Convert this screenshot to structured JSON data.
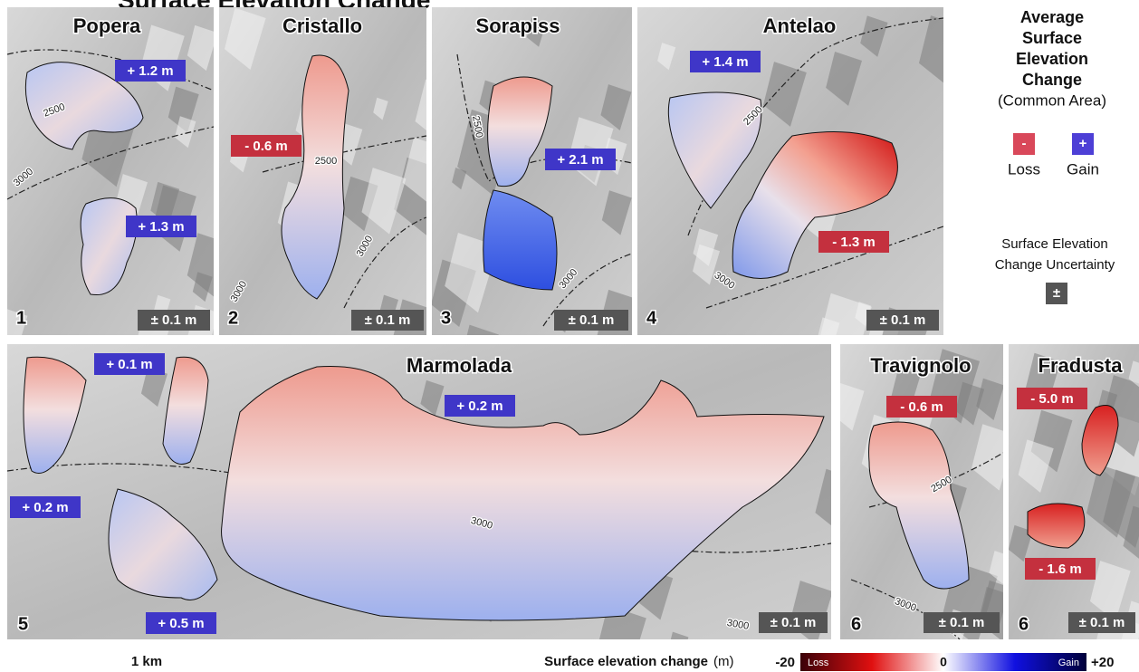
{
  "title": "Surface Elevation Change",
  "panels": [
    {
      "name": "Popera",
      "number": "1",
      "uncertainty": "± 0.1 m",
      "changes": [
        {
          "text": "+ 1.2 m",
          "color": "#3f36c8"
        },
        {
          "text": "+ 1.3 m",
          "color": "#3f36c8"
        }
      ],
      "contours": [
        "2500",
        "3000"
      ]
    },
    {
      "name": "Cristallo",
      "number": "2",
      "uncertainty": "± 0.1 m",
      "changes": [
        {
          "text": "- 0.6 m",
          "color": "#c4303e"
        }
      ],
      "contours": [
        "2500",
        "3000",
        "3000"
      ]
    },
    {
      "name": "Sorapiss",
      "number": "3",
      "uncertainty": "± 0.1 m",
      "changes": [
        {
          "text": "+ 2.1 m",
          "color": "#3f36c8"
        }
      ],
      "contours": [
        "2500",
        "3000"
      ]
    },
    {
      "name": "Antelao",
      "number": "4",
      "uncertainty": "± 0.1 m",
      "changes": [
        {
          "text": "+ 1.4 m",
          "color": "#3f36c8"
        },
        {
          "text": "- 1.3 m",
          "color": "#c4303e"
        }
      ],
      "contours": [
        "2500",
        "3000"
      ]
    },
    {
      "name": "Marmolada",
      "number": "5",
      "uncertainty": "± 0.1 m",
      "changes": [
        {
          "text": "+ 0.1 m",
          "color": "#3f36c8"
        },
        {
          "text": "+ 0.2 m",
          "color": "#3f36c8"
        },
        {
          "text": "+ 0.2 m",
          "color": "#3f36c8"
        },
        {
          "text": "+ 0.5 m",
          "color": "#3f36c8"
        }
      ],
      "contours": [
        "3000",
        "3000"
      ]
    },
    {
      "name": "Travignolo",
      "number": "6",
      "uncertainty": "± 0.1 m",
      "changes": [
        {
          "text": "- 0.6 m",
          "color": "#c4303e"
        }
      ],
      "contours": [
        "2500",
        "3000"
      ]
    },
    {
      "name": "Fradusta",
      "number": "6",
      "uncertainty": "± 0.1 m",
      "changes": [
        {
          "text": "- 5.0 m",
          "color": "#c4303e"
        },
        {
          "text": "- 1.6 m",
          "color": "#c4303e"
        }
      ],
      "contours": []
    }
  ],
  "legend": {
    "title_lines": [
      "Average",
      "Surface",
      "Elevation",
      "Change"
    ],
    "subtitle": "(Common Area)",
    "loss_symbol": "-",
    "loss_color": "#d9485a",
    "loss": "Loss",
    "gain_symbol": "+",
    "gain_color": "#4d3fd6",
    "gain": "Gain",
    "uncertainty_lines": [
      "Surface Elevation",
      "Change Uncertainty"
    ],
    "uncertainty_symbol": "±",
    "uncertainty_color": "#555555"
  },
  "scale_bar": "1 km",
  "colorbar": {
    "label": "Surface elevation change",
    "unit": "(m)",
    "min": "-20",
    "loss": "Loss",
    "zero": "0",
    "gain": "Gain",
    "max": "+20",
    "colors": [
      "#3a0008",
      "#e01010",
      "#ffffff",
      "#1010e0",
      "#00003a"
    ]
  }
}
